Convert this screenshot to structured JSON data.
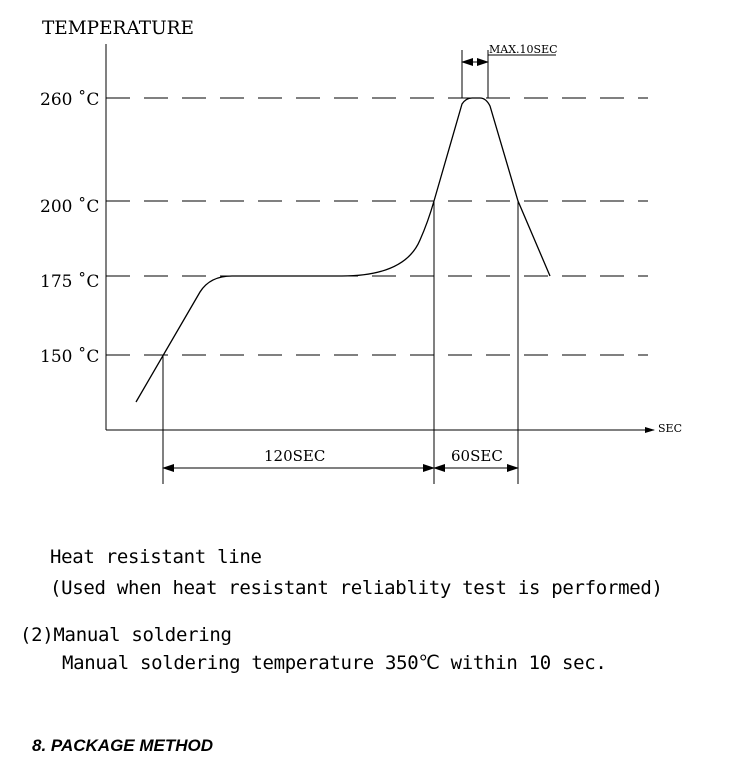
{
  "diagram": {
    "y_axis_title": "TEMPERATURE",
    "x_axis_unit": "SEC",
    "temp_levels": [
      "260 ˚C",
      "200 ˚C",
      "175 ˚C",
      "150 ˚C"
    ],
    "peak_window_label": "MAX.10SEC",
    "preheat_label": "120SEC",
    "reflow_label": "60SEC"
  },
  "text": {
    "line1": "Heat resistant line",
    "line2": "(Used when heat resistant reliablity test is performed)",
    "line3": "(2)Manual soldering",
    "line4": "Manual soldering temperature 350℃ within 10 sec.",
    "section_heading": "8. PACKAGE METHOD"
  }
}
